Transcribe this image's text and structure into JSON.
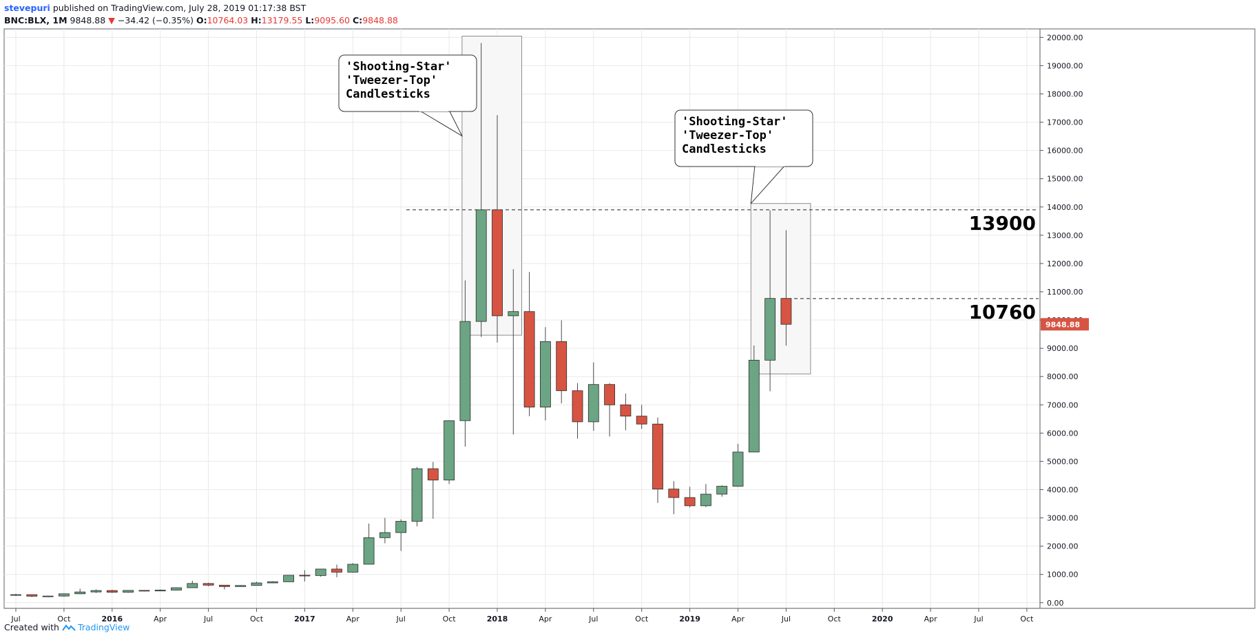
{
  "header": {
    "author": "stevepuri",
    "published": "published on TradingView.com, July 28, 2019 01:17:38 BST",
    "symbol": "BNC:BLX, 1M",
    "last": "9848.88",
    "change": "−34.42 (−0.35%)",
    "o_label": "O:",
    "o_value": "10764.03",
    "h_label": "H:",
    "h_value": "13179.55",
    "l_label": "L:",
    "l_value": "9095.60",
    "c_label": "C:",
    "c_value": "9848.88"
  },
  "footer": {
    "created_with": "Created with",
    "brand": "TradingView"
  },
  "colors": {
    "up": "#6ba583",
    "down": "#d75442",
    "grid": "#e9e9ea",
    "axis": "#555555",
    "price_tag": "#d75442"
  },
  "chart_data": {
    "type": "candlestick",
    "interval": "1M",
    "ylim": [
      -200,
      20300
    ],
    "y_ticks": [
      "0.00",
      "1000.00",
      "2000.00",
      "3000.00",
      "4000.00",
      "5000.00",
      "6000.00",
      "7000.00",
      "8000.00",
      "9000.00",
      "10000.00",
      "11000.00",
      "12000.00",
      "13000.00",
      "14000.00",
      "15000.00",
      "16000.00",
      "17000.00",
      "18000.00",
      "19000.00",
      "20000.00"
    ],
    "x_ticks": [
      {
        "label": "Jul",
        "i": 0
      },
      {
        "label": "Oct",
        "i": 3
      },
      {
        "label": "2016",
        "i": 6
      },
      {
        "label": "Apr",
        "i": 9
      },
      {
        "label": "Jul",
        "i": 12
      },
      {
        "label": "Oct",
        "i": 15
      },
      {
        "label": "2017",
        "i": 18
      },
      {
        "label": "Apr",
        "i": 21
      },
      {
        "label": "Jul",
        "i": 24
      },
      {
        "label": "Oct",
        "i": 27
      },
      {
        "label": "2018",
        "i": 30
      },
      {
        "label": "Apr",
        "i": 33
      },
      {
        "label": "Jul",
        "i": 36
      },
      {
        "label": "Oct",
        "i": 39
      },
      {
        "label": "2019",
        "i": 42
      },
      {
        "label": "Apr",
        "i": 45
      },
      {
        "label": "Jul",
        "i": 48
      },
      {
        "label": "Oct",
        "i": 51
      },
      {
        "label": "2020",
        "i": 54
      },
      {
        "label": "Apr",
        "i": 57
      },
      {
        "label": "Jul",
        "i": 60
      },
      {
        "label": "Oct",
        "i": 63
      }
    ],
    "candles": [
      {
        "d": "2015-07",
        "o": 260,
        "h": 315,
        "l": 240,
        "c": 285
      },
      {
        "d": "2015-08",
        "o": 285,
        "h": 290,
        "l": 200,
        "c": 230
      },
      {
        "d": "2015-09",
        "o": 230,
        "h": 245,
        "l": 225,
        "c": 235
      },
      {
        "d": "2015-10",
        "o": 235,
        "h": 330,
        "l": 210,
        "c": 315
      },
      {
        "d": "2015-11",
        "o": 315,
        "h": 500,
        "l": 300,
        "c": 380
      },
      {
        "d": "2015-12",
        "o": 380,
        "h": 470,
        "l": 345,
        "c": 430
      },
      {
        "d": "2016-01",
        "o": 430,
        "h": 460,
        "l": 350,
        "c": 370
      },
      {
        "d": "2016-02",
        "o": 370,
        "h": 440,
        "l": 350,
        "c": 435
      },
      {
        "d": "2016-03",
        "o": 435,
        "h": 440,
        "l": 400,
        "c": 415
      },
      {
        "d": "2016-04",
        "o": 415,
        "h": 470,
        "l": 410,
        "c": 445
      },
      {
        "d": "2016-05",
        "o": 445,
        "h": 540,
        "l": 440,
        "c": 530
      },
      {
        "d": "2016-06",
        "o": 530,
        "h": 780,
        "l": 525,
        "c": 680
      },
      {
        "d": "2016-07",
        "o": 680,
        "h": 705,
        "l": 580,
        "c": 620
      },
      {
        "d": "2016-08",
        "o": 620,
        "h": 625,
        "l": 470,
        "c": 570
      },
      {
        "d": "2016-09",
        "o": 570,
        "h": 625,
        "l": 565,
        "c": 610
      },
      {
        "d": "2016-10",
        "o": 610,
        "h": 740,
        "l": 605,
        "c": 700
      },
      {
        "d": "2016-11",
        "o": 700,
        "h": 760,
        "l": 690,
        "c": 740
      },
      {
        "d": "2016-12",
        "o": 740,
        "h": 975,
        "l": 735,
        "c": 970
      },
      {
        "d": "2017-01",
        "o": 970,
        "h": 1150,
        "l": 750,
        "c": 960
      },
      {
        "d": "2017-02",
        "o": 960,
        "h": 1200,
        "l": 920,
        "c": 1190
      },
      {
        "d": "2017-03",
        "o": 1190,
        "h": 1350,
        "l": 900,
        "c": 1080
      },
      {
        "d": "2017-04",
        "o": 1080,
        "h": 1400,
        "l": 1060,
        "c": 1360
      },
      {
        "d": "2017-05",
        "o": 1360,
        "h": 2800,
        "l": 1360,
        "c": 2300
      },
      {
        "d": "2017-06",
        "o": 2300,
        "h": 3000,
        "l": 2100,
        "c": 2480
      },
      {
        "d": "2017-07",
        "o": 2480,
        "h": 2950,
        "l": 1830,
        "c": 2880
      },
      {
        "d": "2017-08",
        "o": 2880,
        "h": 4800,
        "l": 2700,
        "c": 4740
      },
      {
        "d": "2017-09",
        "o": 4740,
        "h": 4980,
        "l": 2970,
        "c": 4340
      },
      {
        "d": "2017-10",
        "o": 4340,
        "h": 6450,
        "l": 4200,
        "c": 6440
      },
      {
        "d": "2017-11",
        "o": 6440,
        "h": 11400,
        "l": 5520,
        "c": 9950
      },
      {
        "d": "2017-12",
        "o": 9950,
        "h": 19800,
        "l": 9400,
        "c": 13900
      },
      {
        "d": "2018-01",
        "o": 13900,
        "h": 17250,
        "l": 9200,
        "c": 10150
      },
      {
        "d": "2018-02",
        "o": 10150,
        "h": 11800,
        "l": 5950,
        "c": 10300
      },
      {
        "d": "2018-03",
        "o": 10300,
        "h": 11700,
        "l": 6600,
        "c": 6920
      },
      {
        "d": "2018-04",
        "o": 6920,
        "h": 9750,
        "l": 6450,
        "c": 9240
      },
      {
        "d": "2018-05",
        "o": 9240,
        "h": 9990,
        "l": 7050,
        "c": 7500
      },
      {
        "d": "2018-06",
        "o": 7500,
        "h": 7770,
        "l": 5800,
        "c": 6400
      },
      {
        "d": "2018-07",
        "o": 6400,
        "h": 8500,
        "l": 6080,
        "c": 7720
      },
      {
        "d": "2018-08",
        "o": 7720,
        "h": 7770,
        "l": 5880,
        "c": 7000
      },
      {
        "d": "2018-09",
        "o": 7000,
        "h": 7400,
        "l": 6100,
        "c": 6600
      },
      {
        "d": "2018-10",
        "o": 6600,
        "h": 7000,
        "l": 6150,
        "c": 6320
      },
      {
        "d": "2018-11",
        "o": 6320,
        "h": 6550,
        "l": 3530,
        "c": 4020
      },
      {
        "d": "2018-12",
        "o": 4020,
        "h": 4300,
        "l": 3130,
        "c": 3720
      },
      {
        "d": "2019-01",
        "o": 3720,
        "h": 4100,
        "l": 3370,
        "c": 3430
      },
      {
        "d": "2019-02",
        "o": 3430,
        "h": 4200,
        "l": 3380,
        "c": 3840
      },
      {
        "d": "2019-03",
        "o": 3840,
        "h": 4150,
        "l": 3750,
        "c": 4120
      },
      {
        "d": "2019-04",
        "o": 4120,
        "h": 5620,
        "l": 4100,
        "c": 5330
      },
      {
        "d": "2019-05",
        "o": 5330,
        "h": 9100,
        "l": 5330,
        "c": 8580
      },
      {
        "d": "2019-06",
        "o": 8580,
        "h": 13880,
        "l": 7480,
        "c": 10764.03
      },
      {
        "d": "2019-07",
        "o": 10764.03,
        "h": 13179.55,
        "l": 9095.6,
        "c": 9848.88
      }
    ],
    "horizontal_lines": [
      {
        "value": 13900,
        "label": "13900"
      },
      {
        "value": 10760,
        "label": "10760"
      }
    ],
    "annotations": [
      {
        "text": [
          "'Shooting-Star'",
          "'Tweezer-Top'",
          "Candlesticks"
        ],
        "target_start": 29,
        "target_end": 30
      },
      {
        "text": [
          "'Shooting-Star'",
          "'Tweezer-Top'",
          "Candlesticks"
        ],
        "target_start": 47,
        "target_end": 48
      }
    ],
    "last_price_tag": "9848.88"
  }
}
